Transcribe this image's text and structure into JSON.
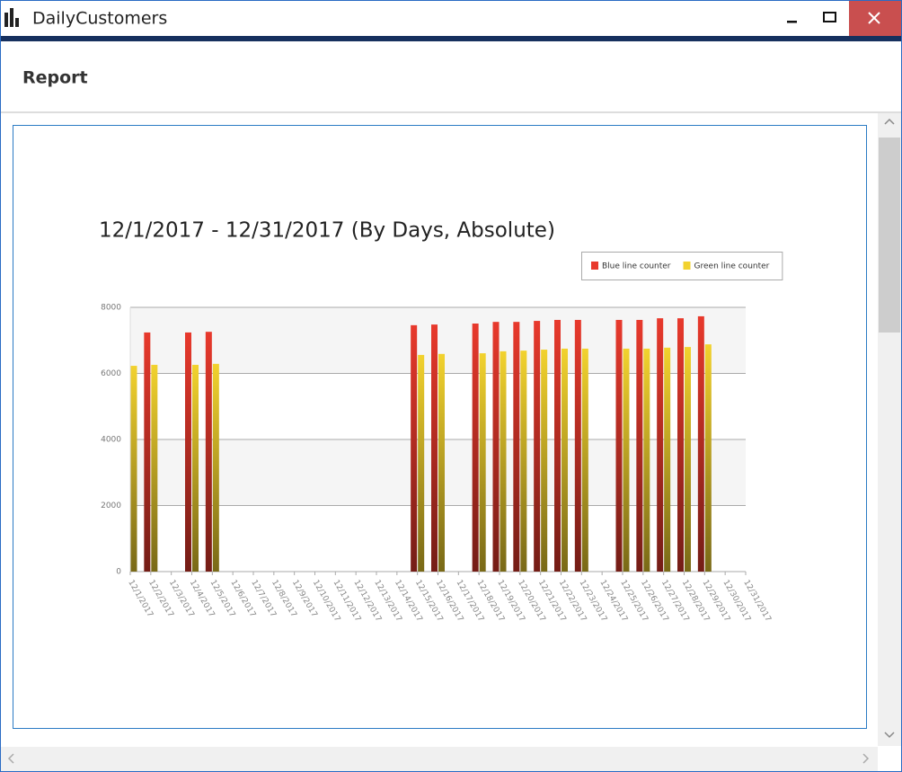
{
  "window": {
    "title": "DailyCustomers"
  },
  "header": {
    "title": "Report"
  },
  "chart_data": {
    "type": "bar",
    "title": "12/1/2017 - 12/31/2017 (By Days, Absolute)",
    "categories": [
      "12/1/2017",
      "12/2/2017",
      "12/3/2017",
      "12/4/2017",
      "12/5/2017",
      "12/6/2017",
      "12/7/2017",
      "12/8/2017",
      "12/9/2017",
      "12/10/2017",
      "12/11/2017",
      "12/12/2017",
      "12/13/2017",
      "12/14/2017",
      "12/15/2017",
      "12/16/2017",
      "12/17/2017",
      "12/18/2017",
      "12/19/2017",
      "12/20/2017",
      "12/21/2017",
      "12/22/2017",
      "12/23/2017",
      "12/24/2017",
      "12/25/2017",
      "12/26/2017",
      "12/27/2017",
      "12/28/2017",
      "12/29/2017",
      "12/30/2017",
      "12/31/2017"
    ],
    "series": [
      {
        "name": "Blue line counter",
        "color": "#e8392c",
        "values": [
          null,
          7240,
          null,
          7240,
          7260,
          null,
          null,
          null,
          null,
          null,
          null,
          null,
          null,
          null,
          7460,
          7480,
          null,
          7510,
          7560,
          7560,
          7590,
          7620,
          7620,
          null,
          7620,
          7620,
          7670,
          7670,
          7730,
          null,
          null
        ]
      },
      {
        "name": "Green line counter",
        "color": "#f2d22e",
        "values": [
          6230,
          6260,
          null,
          6260,
          6290,
          null,
          null,
          null,
          null,
          null,
          null,
          null,
          null,
          null,
          6560,
          6590,
          null,
          6610,
          6670,
          6690,
          6720,
          6750,
          6750,
          null,
          6750,
          6750,
          6780,
          6800,
          6880,
          null,
          null
        ]
      }
    ],
    "ylim": [
      0,
      8000
    ],
    "yticks": [
      0,
      2000,
      4000,
      6000,
      8000
    ],
    "grid": true,
    "legend": "top-right"
  }
}
